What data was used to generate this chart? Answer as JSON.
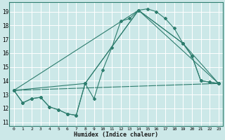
{
  "xlabel": "Humidex (Indice chaleur)",
  "background_color": "#cce8e8",
  "grid_color": "#ffffff",
  "line_color": "#2e7d6e",
  "xlim": [
    -0.5,
    23.5
  ],
  "ylim": [
    10.7,
    19.7
  ],
  "xticks": [
    0,
    1,
    2,
    3,
    4,
    5,
    6,
    7,
    8,
    9,
    10,
    11,
    12,
    13,
    14,
    15,
    16,
    17,
    18,
    19,
    20,
    21,
    22,
    23
  ],
  "yticks": [
    11,
    12,
    13,
    14,
    15,
    16,
    17,
    18,
    19
  ],
  "line1_x": [
    0,
    1,
    2,
    3,
    4,
    5,
    6,
    7,
    8,
    9,
    10,
    11,
    12,
    13,
    14,
    15,
    16,
    17,
    18,
    19,
    20,
    21,
    22,
    23
  ],
  "line1_y": [
    13.3,
    12.4,
    12.7,
    12.8,
    12.1,
    11.9,
    11.6,
    11.5,
    13.8,
    12.7,
    14.8,
    16.4,
    18.3,
    18.5,
    19.1,
    19.2,
    19.0,
    18.5,
    17.8,
    16.7,
    15.8,
    14.0,
    13.9,
    13.8
  ],
  "line2_x": [
    0,
    1,
    2,
    3,
    4,
    5,
    6,
    7,
    8,
    14,
    19,
    20,
    21,
    22,
    23
  ],
  "line2_y": [
    13.3,
    12.4,
    12.7,
    12.8,
    12.1,
    11.9,
    11.6,
    11.5,
    13.8,
    19.1,
    16.7,
    15.8,
    14.0,
    13.9,
    13.8
  ],
  "line3_x": [
    0,
    8,
    14,
    19,
    23
  ],
  "line3_y": [
    13.3,
    13.8,
    19.1,
    16.7,
    13.8
  ],
  "line4_x": [
    0,
    14,
    23
  ],
  "line4_y": [
    13.3,
    19.1,
    13.8
  ],
  "line5_x": [
    0,
    23
  ],
  "line5_y": [
    13.3,
    13.8
  ]
}
